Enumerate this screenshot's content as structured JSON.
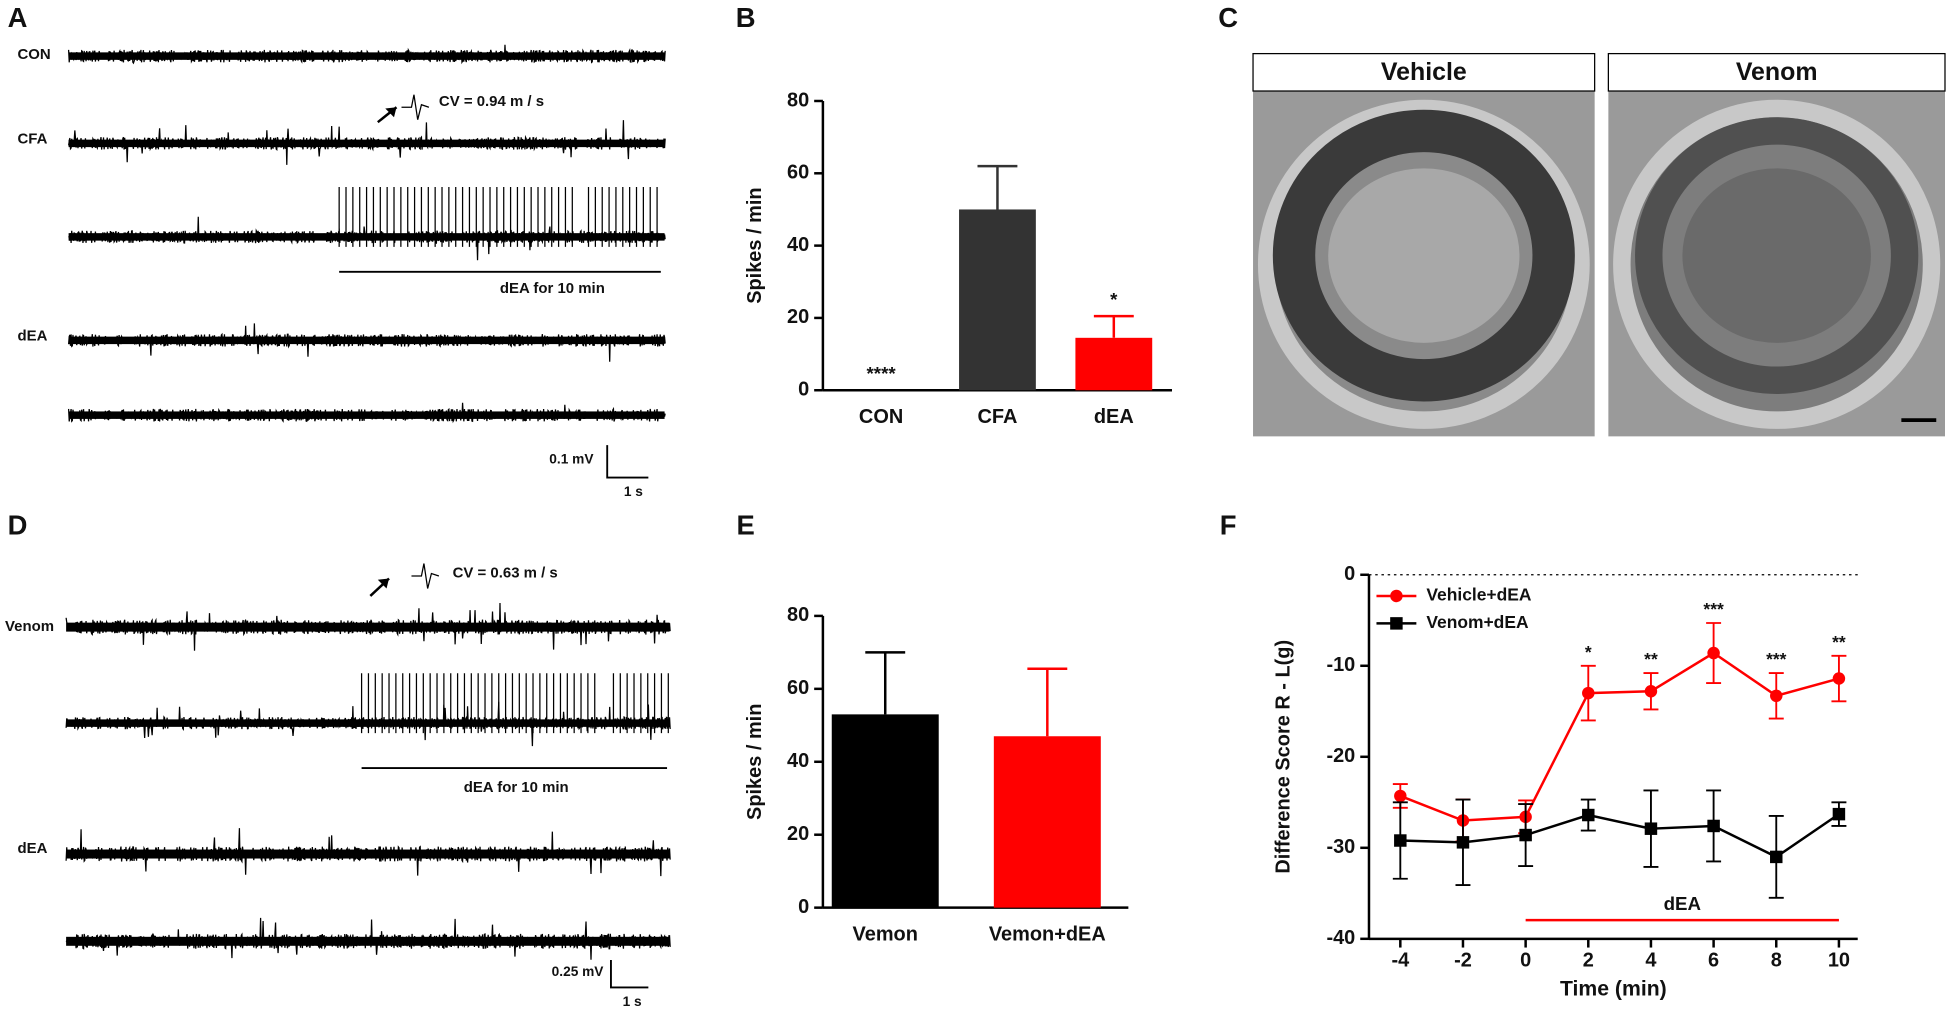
{
  "panel_labels": [
    "A",
    "B",
    "C",
    "D",
    "E",
    "F"
  ],
  "panel_a": {
    "traces": [
      "CON",
      "CFA",
      "dEA"
    ],
    "cv": "CV = 0.94 m /  s",
    "stim": "dEA for 10 min",
    "scale_y": "0.1 mV",
    "scale_x": "1 s"
  },
  "panel_c": {
    "titles": [
      "Vehicle",
      "Venom"
    ]
  },
  "panel_d": {
    "traces": [
      "Venom",
      "dEA"
    ],
    "cv": "CV = 0.63 m /  s",
    "stim": "dEA for 10 min",
    "scale_y": "0.25 mV",
    "scale_x": "1 s"
  },
  "chart_data": [
    {
      "type": "bar",
      "categories": [
        "CON",
        "CFA",
        "dEA"
      ],
      "values": [
        0,
        50,
        14.5
      ],
      "errors": [
        0,
        12,
        6
      ],
      "colors": [
        "#333333",
        "#333333",
        "#ff0000"
      ],
      "significance": [
        "****",
        null,
        "*"
      ],
      "ylabel": "Spikes / min",
      "ylim": [
        0,
        80
      ],
      "yticks": [
        0,
        20,
        40,
        60,
        80
      ]
    },
    {
      "type": "bar",
      "categories": [
        "Vemon",
        "Vemon+dEA"
      ],
      "values": [
        53,
        47
      ],
      "errors": [
        17,
        18.5
      ],
      "colors": [
        "#000000",
        "#ff0000"
      ],
      "ylabel": "Spikes / min",
      "ylim": [
        0,
        80
      ],
      "yticks": [
        0,
        20,
        40,
        60,
        80
      ]
    },
    {
      "type": "line",
      "x": [
        -4,
        -2,
        0,
        2,
        4,
        6,
        8,
        10
      ],
      "series": [
        {
          "name": "Vehicle+dEA",
          "color": "#ff0000",
          "marker": "circle",
          "values": [
            -24.3,
            -27,
            -26.6,
            -13,
            -12.8,
            -8.6,
            -13.3,
            -11.4
          ],
          "errors": [
            1.3,
            2.3,
            1.8,
            3,
            2,
            3.3,
            2.5,
            2.5
          ]
        },
        {
          "name": "Venom+dEA",
          "color": "#000000",
          "marker": "square",
          "values": [
            -29.2,
            -29.4,
            -28.6,
            -26.4,
            -27.9,
            -27.6,
            -31,
            -26.3
          ],
          "errors": [
            4.2,
            4.7,
            3.4,
            1.7,
            4.2,
            3.9,
            4.5,
            1.3
          ]
        }
      ],
      "significance": [
        null,
        null,
        null,
        "*",
        "**",
        "***",
        "***",
        "**"
      ],
      "reference_line": 0,
      "stim": {
        "label": "dEA",
        "start": 0,
        "end": 10
      },
      "xlabel": "Time (min)",
      "ylabel": "Difference Score  R - L(g)",
      "xlim": [
        -5,
        10.6
      ],
      "xticks": [
        -4,
        -2,
        0,
        2,
        4,
        6,
        8,
        10
      ],
      "ylim": [
        -40,
        0
      ],
      "yticks": [
        -40,
        -30,
        -20,
        -10,
        0
      ],
      "legend": "upper left"
    }
  ]
}
